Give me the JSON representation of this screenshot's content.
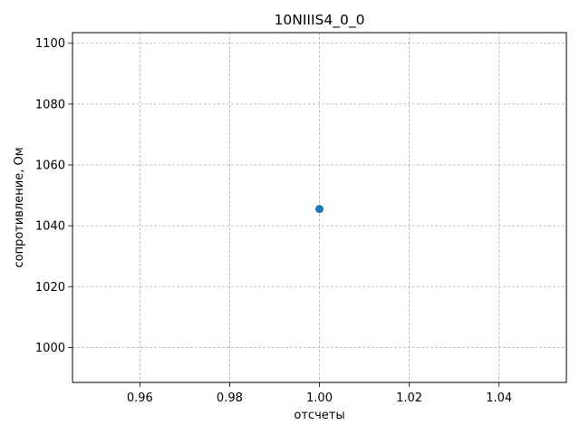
{
  "chart_data": {
    "type": "scatter",
    "title": "10NIIIS4_0_0",
    "xlabel": "отсчеты",
    "ylabel": "сопротивление, Ом",
    "series": [
      {
        "x": [
          1.0
        ],
        "y": [
          1045.5
        ],
        "color": "#1f77b4",
        "marker": "circle"
      }
    ],
    "xlim": [
      0.945,
      1.055
    ],
    "ylim": [
      988.5,
      1103.5
    ],
    "xticks": [
      "0.96",
      "0.98",
      "1.00",
      "1.02",
      "1.04"
    ],
    "xtick_values": [
      0.96,
      0.98,
      1.0,
      1.02,
      1.04
    ],
    "yticks": [
      "1000",
      "1020",
      "1040",
      "1060",
      "1080",
      "1100"
    ],
    "ytick_values": [
      1000,
      1020,
      1040,
      1060,
      1080,
      1100
    ],
    "grid": true,
    "grid_style": "dashed",
    "grid_color": "#b0b0b0",
    "legend": "none"
  }
}
